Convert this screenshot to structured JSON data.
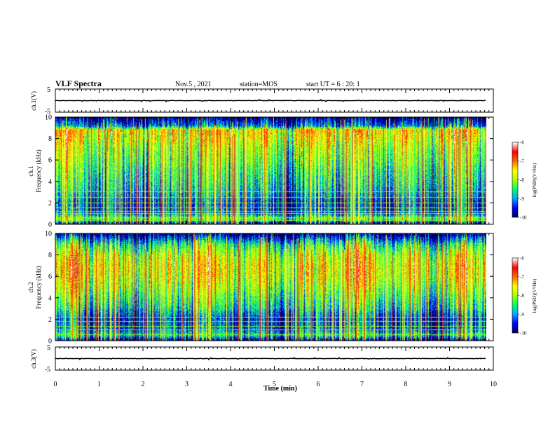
{
  "header": {
    "title": "VLF Spectra",
    "date": "Nov.5 , 2021",
    "station": "station=MOS",
    "start_ut": "start UT = 6 : 20: 1"
  },
  "chart_data": [
    {
      "type": "line",
      "panel": "ch1-waveform",
      "ylabel": "ch.1(V)",
      "ylim": [
        -5,
        5
      ],
      "ytick_labels": [
        "5",
        "-5"
      ],
      "x_range_min": [
        0,
        9.83
      ],
      "trace_level_v": 0
    },
    {
      "type": "heatmap",
      "panel": "ch1-spectrogram",
      "ylabel_line1": "ch.1",
      "ylabel_line2": "Frequency (kHz)",
      "ylim": [
        0,
        10
      ],
      "ytick_labels": [
        "0",
        "2",
        "4",
        "6",
        "8",
        "10"
      ],
      "x_range_min": [
        0,
        9.83
      ],
      "colorbar": {
        "label": "log(PSD)(V²/Hz)",
        "range": [
          -10,
          -6
        ],
        "tick_labels": [
          "-6",
          "-7",
          "-8",
          "-9",
          "-10"
        ],
        "colors": [
          "#000066",
          "#0000ff",
          "#00aaff",
          "#00ff66",
          "#aaff00",
          "#ffff00",
          "#ff6600",
          "#ff0000",
          "#ffffff"
        ]
      },
      "intensity_profile_by_khz": [
        [
          0.0,
          -10.0
        ],
        [
          0.5,
          -8.0
        ],
        [
          1.0,
          -9.4
        ],
        [
          2.0,
          -9.5
        ],
        [
          3.0,
          -9.0
        ],
        [
          4.0,
          -8.7
        ],
        [
          5.0,
          -8.5
        ],
        [
          6.0,
          -8.2
        ],
        [
          7.0,
          -8.0
        ],
        [
          8.0,
          -7.6
        ],
        [
          8.8,
          -7.4
        ],
        [
          9.2,
          -9.2
        ],
        [
          10.0,
          -10.0
        ]
      ],
      "constant_lines_khz": [
        0.3,
        0.6,
        1.0,
        1.2,
        1.5,
        2.0,
        2.5,
        3.0
      ]
    },
    {
      "type": "heatmap",
      "panel": "ch2-spectrogram",
      "ylabel_line1": "ch.2",
      "ylabel_line2": "Frequency (kHz)",
      "ylim": [
        0,
        10
      ],
      "ytick_labels": [
        "0",
        "2",
        "4",
        "6",
        "8",
        "10"
      ],
      "x_range_min": [
        0,
        9.83
      ],
      "colorbar": {
        "label": "log(PSD)(V²/Hz)",
        "range": [
          -10,
          -6
        ],
        "tick_labels": [
          "-6",
          "-7",
          "-8",
          "-9",
          "-10"
        ],
        "colors": [
          "#000066",
          "#0000ff",
          "#00aaff",
          "#00ff66",
          "#aaff00",
          "#ffff00",
          "#ff6600",
          "#ff0000",
          "#ffffff"
        ]
      },
      "intensity_profile_by_khz": [
        [
          0.0,
          -10.0
        ],
        [
          0.5,
          -8.6
        ],
        [
          1.0,
          -9.3
        ],
        [
          2.0,
          -9.6
        ],
        [
          3.0,
          -8.8
        ],
        [
          4.0,
          -8.4
        ],
        [
          5.0,
          -8.0
        ],
        [
          6.0,
          -7.7
        ],
        [
          7.0,
          -7.6
        ],
        [
          8.0,
          -7.9
        ],
        [
          9.0,
          -8.6
        ],
        [
          9.6,
          -9.4
        ],
        [
          10.0,
          -10.0
        ]
      ],
      "constant_lines_khz": [
        0.5,
        1.0,
        1.3,
        1.8,
        2.2
      ]
    },
    {
      "type": "line",
      "panel": "ch3-waveform",
      "ylabel": "ch.3(V)",
      "ylim": [
        -5,
        5
      ],
      "ytick_labels": [
        "5",
        "-5"
      ],
      "x_range_min": [
        0,
        9.83
      ],
      "trace_level_v": 0
    }
  ],
  "xaxis": {
    "label": "Time (min)",
    "range": [
      0,
      10
    ],
    "tick_labels": [
      "0",
      "1",
      "2",
      "3",
      "4",
      "5",
      "6",
      "7",
      "8",
      "9",
      "10"
    ]
  }
}
